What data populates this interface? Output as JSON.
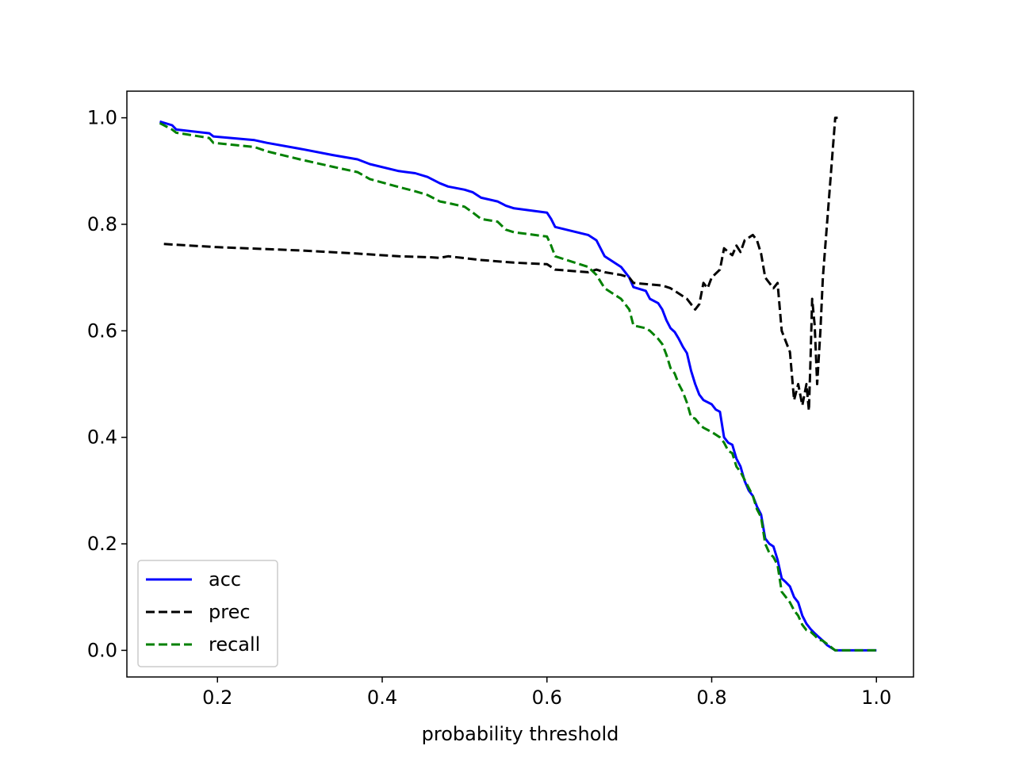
{
  "chart_data": {
    "type": "line",
    "xlabel": "probability threshold",
    "ylabel": "",
    "xlim": [
      0.09,
      1.045
    ],
    "ylim": [
      -0.05,
      1.05
    ],
    "x_ticks": [
      0.2,
      0.4,
      0.6,
      0.8,
      1.0
    ],
    "x_tick_labels": [
      "0.2",
      "0.4",
      "0.6",
      "0.8",
      "1.0"
    ],
    "y_ticks": [
      0.0,
      0.2,
      0.4,
      0.6,
      0.8,
      1.0
    ],
    "y_tick_labels": [
      "0.0",
      "0.2",
      "0.4",
      "0.6",
      "0.8",
      "1.0"
    ],
    "grid": false,
    "legend_position": "lower-left",
    "series": [
      {
        "name": "acc",
        "color": "#0000ff",
        "style": "solid",
        "x": [
          0.13,
          0.145,
          0.15,
          0.19,
          0.195,
          0.245,
          0.26,
          0.3,
          0.34,
          0.37,
          0.385,
          0.42,
          0.44,
          0.455,
          0.47,
          0.48,
          0.5,
          0.51,
          0.52,
          0.54,
          0.55,
          0.56,
          0.6,
          0.605,
          0.61,
          0.65,
          0.66,
          0.67,
          0.69,
          0.7,
          0.705,
          0.72,
          0.725,
          0.735,
          0.74,
          0.745,
          0.75,
          0.755,
          0.76,
          0.765,
          0.77,
          0.775,
          0.78,
          0.785,
          0.79,
          0.8,
          0.805,
          0.81,
          0.815,
          0.82,
          0.825,
          0.83,
          0.835,
          0.84,
          0.845,
          0.85,
          0.855,
          0.86,
          0.865,
          0.87,
          0.875,
          0.88,
          0.885,
          0.89,
          0.895,
          0.9,
          0.905,
          0.91,
          0.915,
          0.92,
          0.925,
          0.93,
          0.935,
          0.94,
          0.95,
          0.955,
          0.96,
          1.0
        ],
        "values": [
          0.993,
          0.986,
          0.978,
          0.971,
          0.965,
          0.958,
          0.953,
          0.942,
          0.93,
          0.922,
          0.913,
          0.9,
          0.896,
          0.889,
          0.877,
          0.871,
          0.865,
          0.86,
          0.85,
          0.843,
          0.835,
          0.83,
          0.822,
          0.81,
          0.795,
          0.78,
          0.77,
          0.74,
          0.72,
          0.7,
          0.682,
          0.675,
          0.66,
          0.652,
          0.64,
          0.62,
          0.605,
          0.598,
          0.585,
          0.57,
          0.558,
          0.525,
          0.5,
          0.48,
          0.47,
          0.462,
          0.452,
          0.448,
          0.4,
          0.39,
          0.386,
          0.36,
          0.345,
          0.318,
          0.3,
          0.29,
          0.27,
          0.255,
          0.21,
          0.2,
          0.195,
          0.17,
          0.135,
          0.128,
          0.12,
          0.1,
          0.09,
          0.065,
          0.05,
          0.04,
          0.032,
          0.025,
          0.018,
          0.01,
          0.0,
          0.0,
          0.0,
          0.0
        ]
      },
      {
        "name": "prec",
        "color": "#000000",
        "style": "dashed",
        "x": [
          0.135,
          0.2,
          0.3,
          0.37,
          0.42,
          0.46,
          0.47,
          0.48,
          0.52,
          0.56,
          0.6,
          0.61,
          0.65,
          0.66,
          0.67,
          0.69,
          0.7,
          0.705,
          0.74,
          0.75,
          0.76,
          0.77,
          0.775,
          0.78,
          0.785,
          0.79,
          0.795,
          0.8,
          0.81,
          0.815,
          0.82,
          0.825,
          0.83,
          0.835,
          0.84,
          0.845,
          0.85,
          0.855,
          0.86,
          0.865,
          0.87,
          0.875,
          0.88,
          0.885,
          0.89,
          0.895,
          0.9,
          0.905,
          0.91,
          0.915,
          0.918,
          0.92,
          0.922,
          0.925,
          0.928,
          0.932,
          0.935,
          0.94,
          0.945,
          0.95,
          0.953
        ],
        "values": [
          0.763,
          0.757,
          0.751,
          0.745,
          0.74,
          0.738,
          0.737,
          0.74,
          0.733,
          0.728,
          0.725,
          0.715,
          0.71,
          0.715,
          0.71,
          0.705,
          0.7,
          0.69,
          0.685,
          0.68,
          0.67,
          0.66,
          0.65,
          0.64,
          0.65,
          0.69,
          0.68,
          0.7,
          0.715,
          0.755,
          0.748,
          0.742,
          0.76,
          0.748,
          0.77,
          0.775,
          0.78,
          0.77,
          0.745,
          0.7,
          0.69,
          0.68,
          0.69,
          0.6,
          0.58,
          0.56,
          0.47,
          0.5,
          0.46,
          0.5,
          0.45,
          0.55,
          0.66,
          0.61,
          0.5,
          0.6,
          0.7,
          0.8,
          0.9,
          1.0,
          1.0
        ]
      },
      {
        "name": "recall",
        "color": "#008000",
        "style": "dashed",
        "x": [
          0.13,
          0.145,
          0.15,
          0.19,
          0.195,
          0.245,
          0.26,
          0.3,
          0.34,
          0.37,
          0.385,
          0.42,
          0.44,
          0.455,
          0.47,
          0.48,
          0.5,
          0.51,
          0.52,
          0.54,
          0.55,
          0.56,
          0.6,
          0.605,
          0.61,
          0.65,
          0.66,
          0.67,
          0.69,
          0.7,
          0.705,
          0.72,
          0.725,
          0.735,
          0.74,
          0.745,
          0.75,
          0.755,
          0.76,
          0.765,
          0.77,
          0.775,
          0.78,
          0.785,
          0.79,
          0.8,
          0.805,
          0.81,
          0.815,
          0.82,
          0.825,
          0.83,
          0.835,
          0.84,
          0.845,
          0.85,
          0.855,
          0.86,
          0.865,
          0.87,
          0.875,
          0.88,
          0.885,
          0.89,
          0.895,
          0.9,
          0.905,
          0.91,
          0.915,
          0.92,
          0.925,
          0.93,
          0.935,
          0.94,
          0.95,
          0.955,
          0.96,
          1.0
        ],
        "values": [
          0.99,
          0.978,
          0.972,
          0.962,
          0.953,
          0.945,
          0.937,
          0.922,
          0.908,
          0.898,
          0.885,
          0.87,
          0.862,
          0.855,
          0.843,
          0.84,
          0.833,
          0.822,
          0.81,
          0.805,
          0.79,
          0.785,
          0.777,
          0.76,
          0.74,
          0.72,
          0.705,
          0.68,
          0.66,
          0.64,
          0.61,
          0.605,
          0.6,
          0.585,
          0.575,
          0.555,
          0.53,
          0.52,
          0.5,
          0.485,
          0.465,
          0.438,
          0.435,
          0.425,
          0.418,
          0.41,
          0.405,
          0.4,
          0.39,
          0.375,
          0.37,
          0.345,
          0.335,
          0.32,
          0.305,
          0.29,
          0.265,
          0.25,
          0.2,
          0.183,
          0.175,
          0.16,
          0.11,
          0.1,
          0.09,
          0.075,
          0.065,
          0.048,
          0.038,
          0.035,
          0.028,
          0.02,
          0.018,
          0.012,
          0.0,
          0.0,
          0.0,
          0.0
        ]
      }
    ]
  }
}
